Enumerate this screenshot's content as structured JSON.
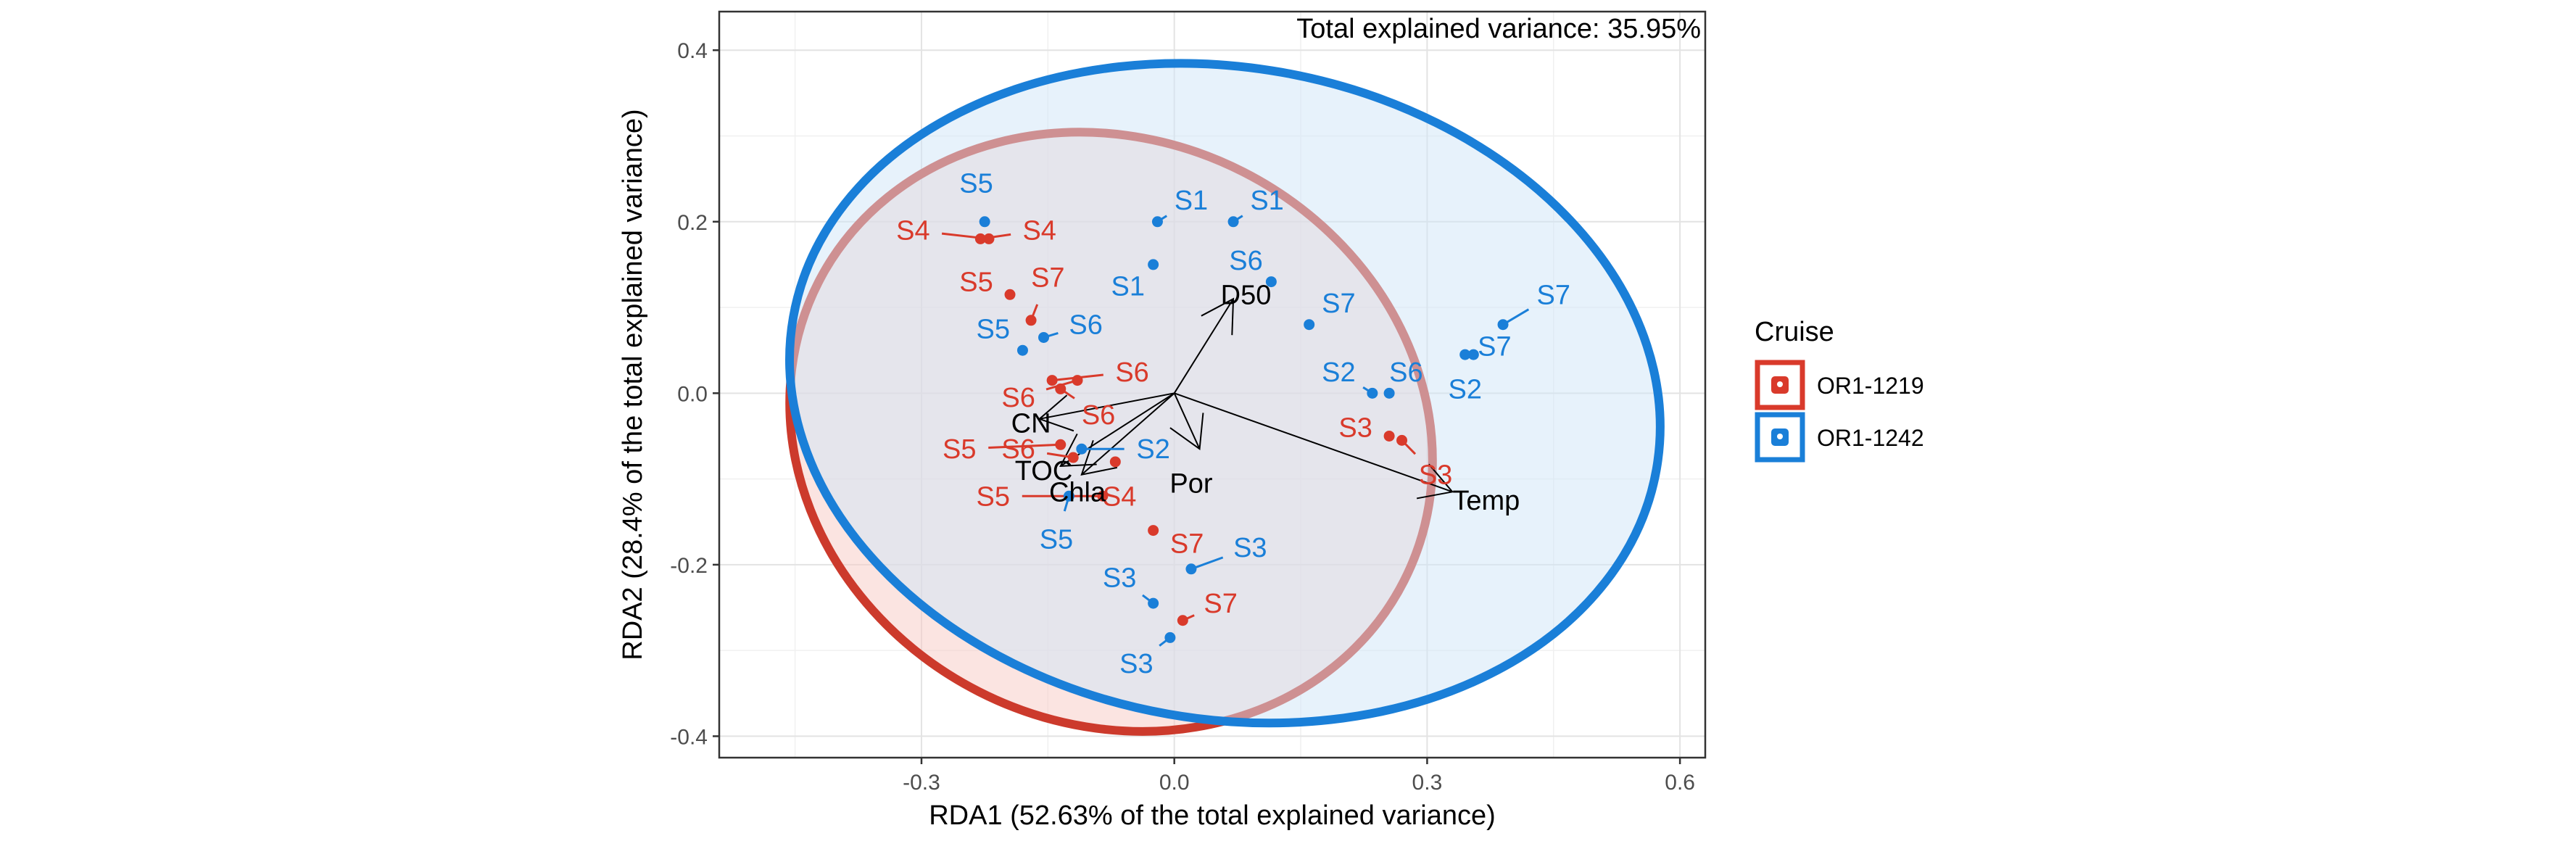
{
  "chart_data": {
    "type": "scatter",
    "subtype": "RDA biplot",
    "annotation": "Total explained variance: 35.95%",
    "xlabel": "RDA1 (52.63% of the total explained variance)",
    "ylabel": "RDA2 (28.4% of the total explained variance)",
    "xlim": [
      -0.54,
      0.63
    ],
    "ylim": [
      -0.425,
      0.445
    ],
    "xticks": [
      -0.3,
      0.0,
      0.3,
      0.6
    ],
    "xtick_labels": [
      "-0.3",
      "0.0",
      "0.3",
      "0.6"
    ],
    "yticks": [
      -0.4,
      -0.2,
      0.0,
      0.2,
      0.4
    ],
    "ytick_labels": [
      "-0.4",
      "-0.2",
      "0.0",
      "0.2",
      "0.4"
    ],
    "grid": true,
    "legend": {
      "title": "Cruise",
      "position": "right",
      "entries": [
        {
          "label": "OR1-1219",
          "color": "#d93a2b"
        },
        {
          "label": "OR1-1242",
          "color": "#1a7fd8"
        }
      ]
    },
    "series": [
      {
        "name": "OR1-1219",
        "color": "#d93a2b",
        "points": [
          {
            "x": -0.22,
            "y": 0.18,
            "label": "S4",
            "lx": -0.31,
            "ly": 0.19
          },
          {
            "x": -0.23,
            "y": 0.18,
            "label": "S4",
            "lx": -0.16,
            "ly": 0.19
          },
          {
            "x": -0.195,
            "y": 0.115,
            "label": "S5",
            "lx": -0.235,
            "ly": 0.13
          },
          {
            "x": -0.17,
            "y": 0.085,
            "label": "S7",
            "lx": -0.15,
            "ly": 0.135
          },
          {
            "x": -0.145,
            "y": 0.015,
            "label": "S6",
            "lx": -0.05,
            "ly": 0.025
          },
          {
            "x": -0.115,
            "y": 0.015,
            "label": "S6",
            "lx": -0.185,
            "ly": -0.005
          },
          {
            "x": -0.135,
            "y": 0.005,
            "label": "S6",
            "lx": -0.09,
            "ly": -0.025
          },
          {
            "x": -0.135,
            "y": -0.06,
            "label": "S5",
            "lx": -0.255,
            "ly": -0.065
          },
          {
            "x": -0.12,
            "y": -0.075,
            "label": "S6",
            "lx": -0.185,
            "ly": -0.065
          },
          {
            "x": -0.07,
            "y": -0.08,
            "label": "S4",
            "lx": -0.065,
            "ly": -0.12
          },
          {
            "x": -0.085,
            "y": -0.12,
            "label": "S5",
            "lx": -0.215,
            "ly": -0.12
          },
          {
            "x": -0.025,
            "y": -0.16,
            "label": "S7",
            "lx": 0.015,
            "ly": -0.175
          },
          {
            "x": 0.01,
            "y": -0.265,
            "label": "S7",
            "lx": 0.055,
            "ly": -0.245
          },
          {
            "x": 0.255,
            "y": -0.05,
            "label": "S3",
            "lx": 0.215,
            "ly": -0.04
          },
          {
            "x": 0.27,
            "y": -0.055,
            "label": "S3",
            "lx": 0.31,
            "ly": -0.095
          }
        ]
      },
      {
        "name": "OR1-1242",
        "color": "#1a7fd8",
        "points": [
          {
            "x": -0.225,
            "y": 0.2,
            "label": "S5",
            "lx": -0.235,
            "ly": 0.245
          },
          {
            "x": -0.18,
            "y": 0.05,
            "label": "S5",
            "lx": -0.215,
            "ly": 0.075
          },
          {
            "x": -0.155,
            "y": 0.065,
            "label": "S6",
            "lx": -0.105,
            "ly": 0.08
          },
          {
            "x": -0.02,
            "y": 0.2,
            "label": "S1",
            "lx": 0.02,
            "ly": 0.225
          },
          {
            "x": 0.07,
            "y": 0.2,
            "label": "S1",
            "lx": 0.11,
            "ly": 0.225
          },
          {
            "x": -0.025,
            "y": 0.15,
            "label": "S1",
            "lx": -0.055,
            "ly": 0.125
          },
          {
            "x": 0.115,
            "y": 0.13,
            "label": "S6",
            "lx": 0.085,
            "ly": 0.155
          },
          {
            "x": 0.16,
            "y": 0.08,
            "label": "S7",
            "lx": 0.195,
            "ly": 0.105
          },
          {
            "x": 0.235,
            "y": 0.0,
            "label": "S2",
            "lx": 0.195,
            "ly": 0.025
          },
          {
            "x": 0.255,
            "y": 0.0,
            "label": "S6",
            "lx": 0.275,
            "ly": 0.025
          },
          {
            "x": 0.345,
            "y": 0.045,
            "label": "S7",
            "lx": 0.38,
            "ly": 0.055
          },
          {
            "x": 0.39,
            "y": 0.08,
            "label": "S7",
            "lx": 0.45,
            "ly": 0.115
          },
          {
            "x": 0.355,
            "y": 0.045,
            "label": "S2",
            "lx": 0.345,
            "ly": 0.005
          },
          {
            "x": -0.11,
            "y": -0.065,
            "label": "S2",
            "lx": -0.025,
            "ly": -0.065
          },
          {
            "x": -0.125,
            "y": -0.12,
            "label": "S5",
            "lx": -0.14,
            "ly": -0.17
          },
          {
            "x": 0.02,
            "y": -0.205,
            "label": "S3",
            "lx": 0.09,
            "ly": -0.18
          },
          {
            "x": -0.025,
            "y": -0.245,
            "label": "S3",
            "lx": -0.065,
            "ly": -0.215
          },
          {
            "x": -0.005,
            "y": -0.285,
            "label": "S3",
            "lx": -0.045,
            "ly": -0.315
          }
        ]
      }
    ],
    "ellipses": [
      {
        "series": "OR1-1219",
        "cx": -0.075,
        "cy": -0.045,
        "rx": 0.39,
        "ry": 0.34,
        "rotation_deg": 27,
        "fill": "#f7c9c3",
        "stroke": "#cc3a2c"
      },
      {
        "series": "OR1-1242",
        "cx": 0.06,
        "cy": 0.0,
        "rx": 0.52,
        "ry": 0.38,
        "rotation_deg": 10,
        "fill": "#cfe5f8",
        "stroke": "#1a7fd8"
      }
    ],
    "vectors": {
      "origin": [
        0.0,
        0.0
      ],
      "items": [
        {
          "label": "D50",
          "x": 0.07,
          "y": 0.11,
          "lx": 0.085,
          "ly": 0.115
        },
        {
          "label": "Temp",
          "x": 0.33,
          "y": -0.115,
          "lx": 0.37,
          "ly": -0.125
        },
        {
          "label": "Por",
          "x": 0.03,
          "y": -0.065,
          "lx": 0.02,
          "ly": -0.105
        },
        {
          "label": "CN",
          "x": -0.16,
          "y": -0.03,
          "lx": -0.17,
          "ly": -0.035
        },
        {
          "label": "TOC",
          "x": -0.135,
          "y": -0.085,
          "lx": -0.155,
          "ly": -0.09
        },
        {
          "label": "Chla",
          "x": -0.11,
          "y": -0.095,
          "lx": -0.115,
          "ly": -0.115
        }
      ]
    }
  }
}
